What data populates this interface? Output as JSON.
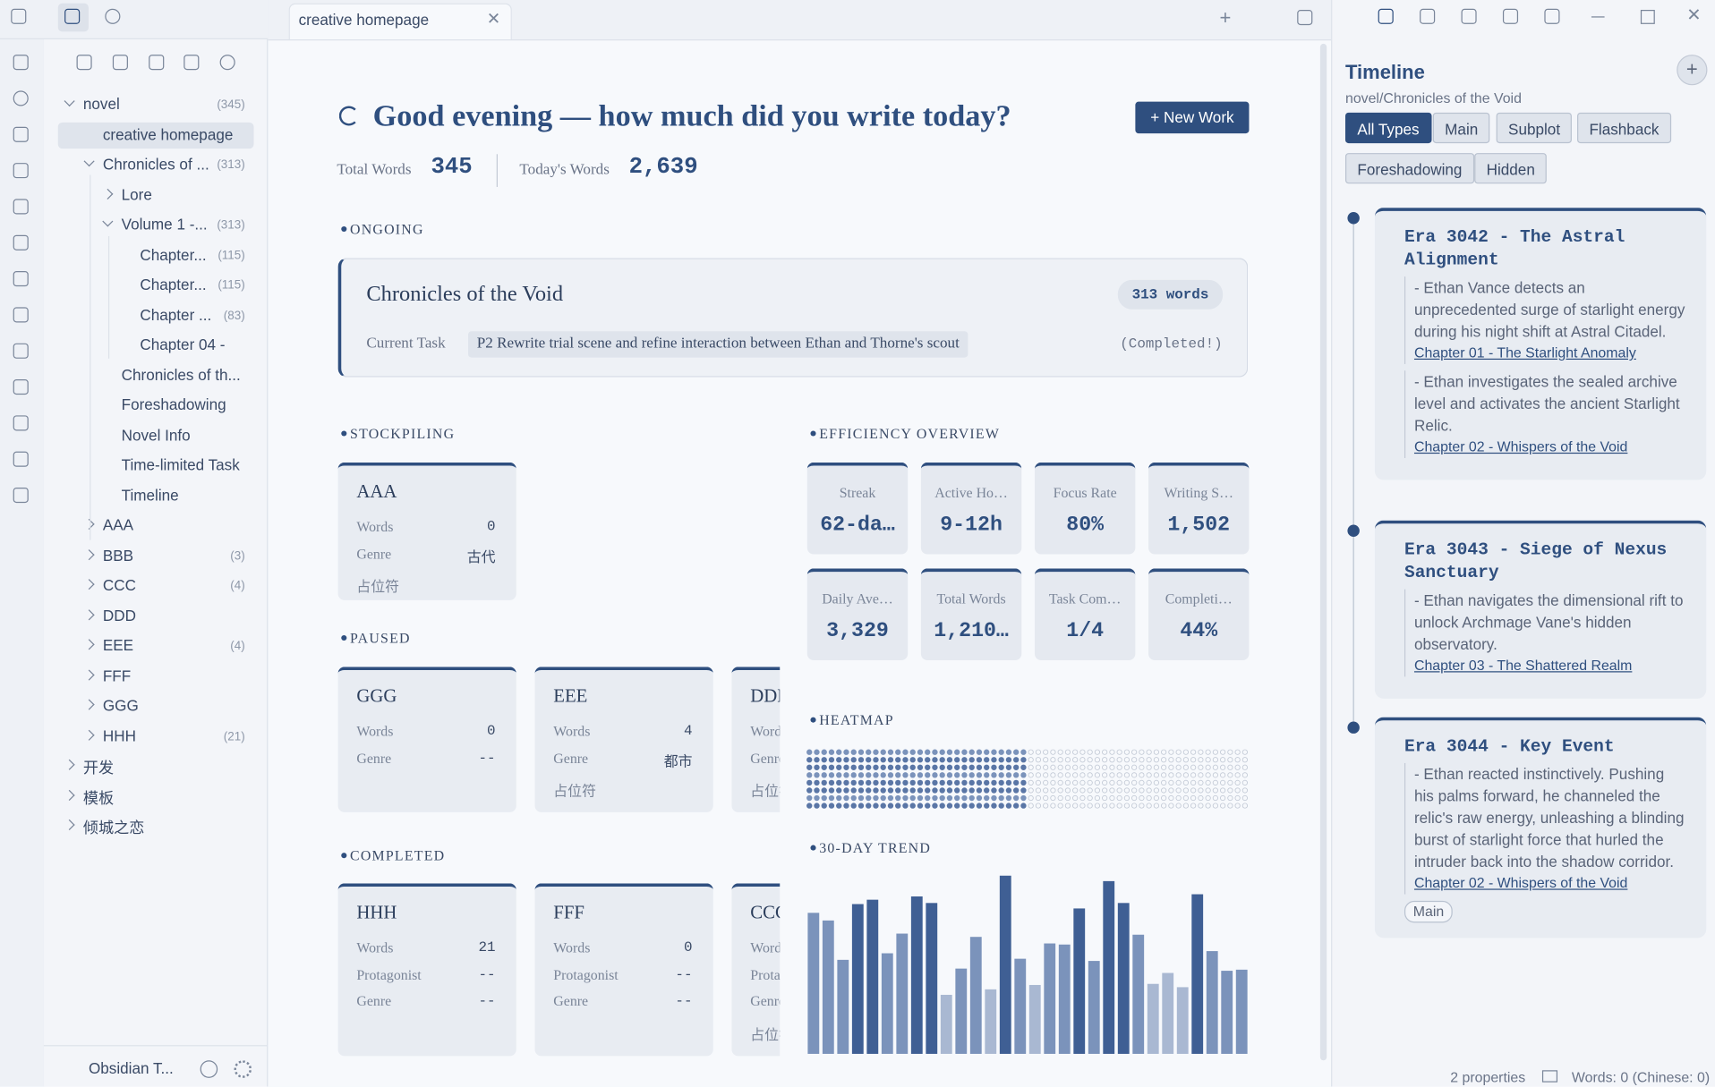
{
  "tab": {
    "title": "creative homepage"
  },
  "sidebar": {
    "vault": "Obsidian T...",
    "tree": [
      {
        "label": "novel",
        "count": "(345)",
        "depth": 0,
        "arrow": "down"
      },
      {
        "label": "creative homepage",
        "depth": 1,
        "active": true
      },
      {
        "label": "Chronicles of ...",
        "count": "(313)",
        "depth": 1,
        "arrow": "down"
      },
      {
        "label": "Lore",
        "depth": 2,
        "arrow": "right"
      },
      {
        "label": "Volume 1 -...",
        "count": "(313)",
        "depth": 2,
        "arrow": "down"
      },
      {
        "label": "Chapter...",
        "count": "(115)",
        "depth": 3
      },
      {
        "label": "Chapter...",
        "count": "(115)",
        "depth": 3
      },
      {
        "label": "Chapter ...",
        "count": "(83)",
        "depth": 3
      },
      {
        "label": "Chapter 04 -",
        "depth": 3
      },
      {
        "label": "Chronicles of th...",
        "depth": 2
      },
      {
        "label": "Foreshadowing",
        "depth": 2
      },
      {
        "label": "Novel Info",
        "depth": 2
      },
      {
        "label": "Time-limited Task",
        "depth": 2
      },
      {
        "label": "Timeline",
        "depth": 2
      },
      {
        "label": "AAA",
        "depth": 1,
        "arrow": "right"
      },
      {
        "label": "BBB",
        "count": "(3)",
        "depth": 1,
        "arrow": "right"
      },
      {
        "label": "CCC",
        "count": "(4)",
        "depth": 1,
        "arrow": "right"
      },
      {
        "label": "DDD",
        "depth": 1,
        "arrow": "right"
      },
      {
        "label": "EEE",
        "count": "(4)",
        "depth": 1,
        "arrow": "right"
      },
      {
        "label": "FFF",
        "depth": 1,
        "arrow": "right"
      },
      {
        "label": "GGG",
        "depth": 1,
        "arrow": "right"
      },
      {
        "label": "HHH",
        "count": "(21)",
        "depth": 1,
        "arrow": "right"
      },
      {
        "label": "开发",
        "depth": 0,
        "arrow": "right"
      },
      {
        "label": "模板",
        "depth": 0,
        "arrow": "right"
      },
      {
        "label": "倾城之恋",
        "depth": 0,
        "arrow": "right"
      }
    ]
  },
  "header": {
    "greeting": "Good evening — how much did you write today?",
    "new_work": "+ New Work",
    "total_words_label": "Total Words",
    "total_words": "345",
    "todays_words_label": "Today's Words",
    "todays_words": "2,639"
  },
  "ongoing": {
    "heading": "ONGOING",
    "title": "Chronicles of the Void",
    "words": "313 words",
    "task_label": "Current Task",
    "task": "P2 Rewrite trial scene and refine interaction between Ethan and Thorne's scout",
    "status": "(Completed!)"
  },
  "stockpiling": {
    "heading": "STOCKPILING",
    "cards": [
      {
        "title": "AAA",
        "rows": [
          [
            "Words",
            "0"
          ],
          [
            "Genre",
            "古代"
          ]
        ],
        "extra": "占位符"
      }
    ]
  },
  "paused": {
    "heading": "PAUSED",
    "cards": [
      {
        "title": "GGG",
        "rows": [
          [
            "Words",
            "0"
          ],
          [
            "Genre",
            "--"
          ]
        ]
      },
      {
        "title": "EEE",
        "rows": [
          [
            "Words",
            "4"
          ],
          [
            "Genre",
            "都市"
          ]
        ],
        "extra": "占位符"
      },
      {
        "title": "DDD",
        "rows": [
          [
            "Words",
            ""
          ],
          [
            "Genre",
            ""
          ]
        ],
        "extra": "占位符"
      }
    ]
  },
  "completed": {
    "heading": "COMPLETED",
    "cards": [
      {
        "title": "HHH",
        "rows": [
          [
            "Words",
            "21"
          ],
          [
            "Protagonist",
            "--"
          ],
          [
            "Genre",
            "--"
          ]
        ]
      },
      {
        "title": "FFF",
        "rows": [
          [
            "Words",
            "0"
          ],
          [
            "Protagonist",
            "--"
          ],
          [
            "Genre",
            "--"
          ]
        ]
      },
      {
        "title": "CCC",
        "rows": [
          [
            "Words",
            ""
          ],
          [
            "Protagonist",
            ""
          ],
          [
            "Genre",
            ""
          ]
        ],
        "extra": "占位符"
      }
    ]
  },
  "efficiency": {
    "heading": "EFFICIENCY OVERVIEW",
    "stats": [
      {
        "label": "Streak",
        "value": "62-da…"
      },
      {
        "label": "Active Ho…",
        "value": "9-12h"
      },
      {
        "label": "Focus Rate",
        "value": "80%"
      },
      {
        "label": "Writing S…",
        "value": "1,502"
      },
      {
        "label": "Daily Ave…",
        "value": "3,329"
      },
      {
        "label": "Total Words",
        "value": "1,210…"
      },
      {
        "label": "Task Com…",
        "value": "1/4"
      },
      {
        "label": "Completi…",
        "value": "44%"
      }
    ]
  },
  "heatmap": {
    "heading": "HEATMAP",
    "rows": 8,
    "levels": [
      1,
      1,
      1,
      1,
      1,
      1,
      1,
      1,
      1,
      1,
      1,
      1,
      1,
      1,
      1,
      1,
      1,
      1,
      1,
      1,
      1,
      1,
      1,
      1,
      1,
      1,
      1,
      1,
      1,
      1,
      0,
      0,
      0,
      0,
      0,
      0,
      0,
      0,
      0,
      0,
      0,
      0,
      0,
      0,
      0,
      0,
      0,
      0,
      0,
      0,
      0,
      0,
      0,
      0,
      0,
      0,
      0,
      0,
      0,
      0
    ]
  },
  "trend": {
    "heading": "30-DAY TREND",
    "values": [
      129,
      122,
      86,
      137,
      141,
      92,
      110,
      144,
      138,
      54,
      78,
      107,
      59,
      163,
      87,
      63,
      101,
      100,
      133,
      85,
      158,
      138,
      109,
      64,
      74,
      61,
      146,
      94,
      76,
      77
    ]
  },
  "timeline": {
    "title": "Timeline",
    "path": "novel/Chronicles of the Void",
    "filters": [
      {
        "label": "All Types",
        "active": true
      },
      {
        "label": "Main"
      },
      {
        "label": "Subplot"
      },
      {
        "label": "Flashback"
      },
      {
        "label": "Foreshadowing"
      },
      {
        "label": "Hidden"
      }
    ],
    "events": [
      {
        "title": "Era 3042 - The Astral Alignment",
        "items": [
          {
            "text": "- Ethan Vance detects an unprecedented surge of starlight energy during his night shift at Astral Citadel.",
            "link": "Chapter 01 - The Starlight Anomaly"
          },
          {
            "text": "- Ethan investigates the sealed archive level and activates the ancient Starlight Relic.",
            "link": "Chapter 02 - Whispers of the Void"
          }
        ]
      },
      {
        "title": "Era 3043 - Siege of Nexus Sanctuary",
        "items": [
          {
            "text": "- Ethan navigates the dimensional rift to unlock Archmage Vane's hidden observatory.",
            "link": "Chapter 03 - The Shattered Realm"
          }
        ]
      },
      {
        "title": "Era 3044 - Key Event",
        "items": [
          {
            "text": "- Ethan reacted instinctively. Pushing his palms forward, he channeled the relic's raw energy, unleashing a blinding burst of starlight force that hurled the intruder back into the shadow corridor.",
            "link": "Chapter 02 - Whispers of the Void"
          }
        ],
        "tag": "Main"
      }
    ]
  },
  "status": {
    "properties": "2 properties",
    "words": "Words: 0 (Chinese: 0)"
  }
}
